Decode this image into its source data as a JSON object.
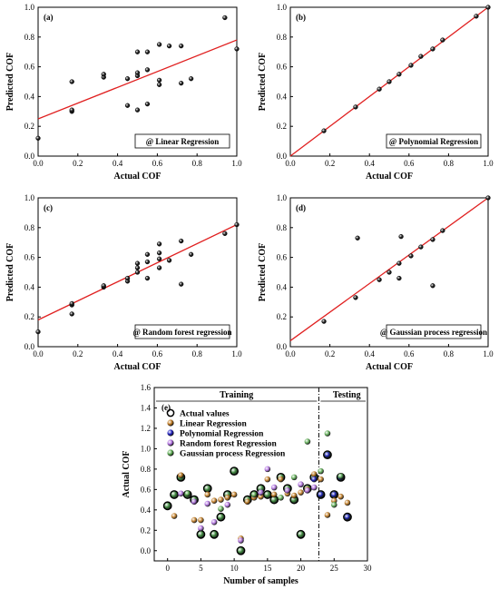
{
  "chart_data": [
    {
      "id": "a",
      "type": "scatter",
      "panel_label": "(a)",
      "method_label": "@ Linear Regression",
      "xlabel": "Actual COF",
      "ylabel": "Predicted COF",
      "xlim": [
        0,
        1
      ],
      "ylim": [
        0,
        1
      ],
      "xticks": [
        "0.0",
        "0.2",
        "0.4",
        "0.6",
        "0.8",
        "1.0"
      ],
      "yticks": [
        "0.0",
        "0.2",
        "0.4",
        "0.6",
        "0.8",
        "1.0"
      ],
      "fit_line": {
        "x0": 0,
        "y0": 0.25,
        "x1": 1,
        "y1": 0.78,
        "color": "#e02020"
      },
      "points": [
        [
          0.0,
          0.12
        ],
        [
          0.17,
          0.3
        ],
        [
          0.17,
          0.31
        ],
        [
          0.17,
          0.5
        ],
        [
          0.33,
          0.53
        ],
        [
          0.33,
          0.55
        ],
        [
          0.45,
          0.34
        ],
        [
          0.45,
          0.52
        ],
        [
          0.5,
          0.31
        ],
        [
          0.5,
          0.54
        ],
        [
          0.5,
          0.56
        ],
        [
          0.5,
          0.7
        ],
        [
          0.55,
          0.35
        ],
        [
          0.55,
          0.58
        ],
        [
          0.55,
          0.7
        ],
        [
          0.61,
          0.48
        ],
        [
          0.61,
          0.51
        ],
        [
          0.61,
          0.75
        ],
        [
          0.66,
          0.74
        ],
        [
          0.72,
          0.49
        ],
        [
          0.72,
          0.74
        ],
        [
          0.77,
          0.52
        ],
        [
          0.94,
          0.93
        ],
        [
          1.0,
          0.72
        ]
      ]
    },
    {
      "id": "b",
      "type": "scatter",
      "panel_label": "(b)",
      "method_label": "@ Polynomial Regression",
      "xlabel": "Actual COF",
      "ylabel": "Predicted COF",
      "xlim": [
        0,
        1
      ],
      "ylim": [
        0,
        1
      ],
      "xticks": [
        "0.0",
        "0.2",
        "0.4",
        "0.6",
        "0.8",
        "1.0"
      ],
      "yticks": [
        "0.0",
        "0.2",
        "0.4",
        "0.6",
        "0.8",
        "1.0"
      ],
      "fit_line": {
        "x0": 0,
        "y0": 0,
        "x1": 1,
        "y1": 1,
        "color": "#e02020"
      },
      "points": [
        [
          0.17,
          0.17
        ],
        [
          0.33,
          0.33
        ],
        [
          0.45,
          0.45
        ],
        [
          0.5,
          0.5
        ],
        [
          0.55,
          0.55
        ],
        [
          0.61,
          0.61
        ],
        [
          0.66,
          0.67
        ],
        [
          0.72,
          0.72
        ],
        [
          0.77,
          0.78
        ],
        [
          0.94,
          0.94
        ],
        [
          1.0,
          1.0
        ]
      ]
    },
    {
      "id": "c",
      "type": "scatter",
      "panel_label": "(c)",
      "method_label": "@ Random forest regression",
      "xlabel": "Actual COF",
      "ylabel": "Predicted COF",
      "xlim": [
        0,
        1
      ],
      "ylim": [
        0,
        1
      ],
      "xticks": [
        "0.0",
        "0.2",
        "0.4",
        "0.6",
        "0.8",
        "1.0"
      ],
      "yticks": [
        "0.0",
        "0.2",
        "0.4",
        "0.6",
        "0.8",
        "1.0"
      ],
      "fit_line": {
        "x0": 0,
        "y0": 0.18,
        "x1": 1,
        "y1": 0.82,
        "color": "#e02020"
      },
      "points": [
        [
          0.0,
          0.1
        ],
        [
          0.17,
          0.22
        ],
        [
          0.17,
          0.28
        ],
        [
          0.17,
          0.29
        ],
        [
          0.33,
          0.4
        ],
        [
          0.33,
          0.41
        ],
        [
          0.45,
          0.44
        ],
        [
          0.45,
          0.46
        ],
        [
          0.5,
          0.5
        ],
        [
          0.5,
          0.53
        ],
        [
          0.5,
          0.56
        ],
        [
          0.55,
          0.46
        ],
        [
          0.55,
          0.57
        ],
        [
          0.55,
          0.62
        ],
        [
          0.61,
          0.53
        ],
        [
          0.61,
          0.59
        ],
        [
          0.61,
          0.63
        ],
        [
          0.61,
          0.69
        ],
        [
          0.66,
          0.58
        ],
        [
          0.72,
          0.42
        ],
        [
          0.72,
          0.71
        ],
        [
          0.77,
          0.62
        ],
        [
          0.94,
          0.76
        ],
        [
          1.0,
          0.82
        ]
      ]
    },
    {
      "id": "d",
      "type": "scatter",
      "panel_label": "(d)",
      "method_label": "@ Gaussian process regression",
      "xlabel": "Actual COF",
      "ylabel": "Predicted COF",
      "xlim": [
        0,
        1
      ],
      "ylim": [
        0,
        1
      ],
      "xticks": [
        "0.0",
        "0.2",
        "0.4",
        "0.6",
        "0.8",
        "1.0"
      ],
      "yticks": [
        "0.0",
        "0.2",
        "0.4",
        "0.6",
        "0.8",
        "1.0"
      ],
      "fit_line": {
        "x0": 0,
        "y0": 0.04,
        "x1": 1,
        "y1": 1.0,
        "color": "#e02020"
      },
      "points": [
        [
          0.17,
          0.17
        ],
        [
          0.33,
          0.33
        ],
        [
          0.34,
          0.73
        ],
        [
          0.45,
          0.45
        ],
        [
          0.5,
          0.5
        ],
        [
          0.55,
          0.46
        ],
        [
          0.55,
          0.56
        ],
        [
          0.56,
          0.74
        ],
        [
          0.61,
          0.61
        ],
        [
          0.66,
          0.67
        ],
        [
          0.72,
          0.41
        ],
        [
          0.72,
          0.72
        ],
        [
          0.77,
          0.78
        ],
        [
          1.0,
          1.0
        ]
      ]
    },
    {
      "id": "e",
      "type": "scatter",
      "panel_label": "(e)",
      "xlabel": "Number of samples",
      "ylabel": "Actual COF",
      "xlim": [
        -2,
        30
      ],
      "ylim": [
        -0.1,
        1.6
      ],
      "xticks": [
        "0",
        "5",
        "10",
        "15",
        "20",
        "25",
        "30"
      ],
      "xtick_values": [
        0,
        5,
        10,
        15,
        20,
        25,
        30
      ],
      "yticks": [
        "0.0",
        "0.2",
        "0.4",
        "0.6",
        "0.8",
        "1.0",
        "1.2",
        "1.4",
        "1.6"
      ],
      "ytick_values": [
        0.0,
        0.2,
        0.4,
        0.6,
        0.8,
        1.0,
        1.2,
        1.4,
        1.6
      ],
      "split_x": 22.7,
      "region_labels": {
        "training": "Training",
        "testing": "Testing"
      },
      "series": [
        {
          "name": "Actual values",
          "color": "#2a7a2a",
          "size": 4.2,
          "x": [
            0,
            1,
            2,
            3,
            4,
            5,
            6,
            7,
            8,
            9,
            10,
            11,
            12,
            13,
            14,
            15,
            16,
            17,
            18,
            19,
            20,
            21,
            22,
            23,
            24,
            25,
            26,
            27
          ],
          "y": [
            0.44,
            0.55,
            0.72,
            0.55,
            0.5,
            0.16,
            0.61,
            0.16,
            0.33,
            0.55,
            0.78,
            0.0,
            0.5,
            0.55,
            0.61,
            0.55,
            0.5,
            0.72,
            0.61,
            0.5,
            0.16,
            0.61,
            0.72,
            0.55,
            0.94,
            0.55,
            0.72,
            0.33
          ]
        },
        {
          "name": "Linear Regression",
          "color": "#c07a20",
          "size": 3.3,
          "x": [
            1,
            2,
            4,
            5,
            6,
            7,
            8,
            9,
            10,
            11,
            12,
            13,
            14,
            15,
            16,
            17,
            18,
            19,
            20,
            21,
            22,
            23,
            24,
            25,
            26,
            27
          ],
          "y": [
            0.34,
            0.74,
            0.3,
            0.3,
            0.55,
            0.49,
            0.5,
            0.52,
            0.55,
            0.12,
            0.48,
            0.52,
            0.53,
            0.7,
            0.55,
            0.7,
            0.56,
            0.54,
            0.57,
            0.6,
            0.75,
            0.7,
            0.35,
            0.49,
            0.53,
            0.47
          ]
        },
        {
          "name": "Polynomial Regression",
          "color": "#2020c0",
          "size": 3.3,
          "x": [
            22,
            23,
            24,
            25,
            26,
            27
          ],
          "y": [
            0.7,
            0.55,
            0.94,
            0.55,
            0.72,
            0.33
          ]
        },
        {
          "name": "Random forest Regression",
          "color": "#b070e0",
          "size": 3.3,
          "x": [
            2,
            4,
            5,
            6,
            7,
            9,
            11,
            14,
            15,
            16,
            18,
            20,
            21,
            22
          ],
          "y": [
            0.56,
            0.48,
            0.22,
            0.46,
            0.28,
            0.45,
            0.1,
            0.57,
            0.8,
            0.62,
            0.59,
            0.65,
            0.59,
            0.62
          ]
        },
        {
          "name": "Gaussian process Regression",
          "color": "#5aaa50",
          "size": 3.3,
          "x": [
            3,
            8,
            13,
            17,
            19,
            21,
            23,
            24,
            25,
            26
          ],
          "y": [
            0.56,
            0.41,
            0.55,
            0.52,
            0.72,
            1.07,
            0.78,
            1.15,
            0.45,
            0.73
          ]
        }
      ]
    }
  ]
}
